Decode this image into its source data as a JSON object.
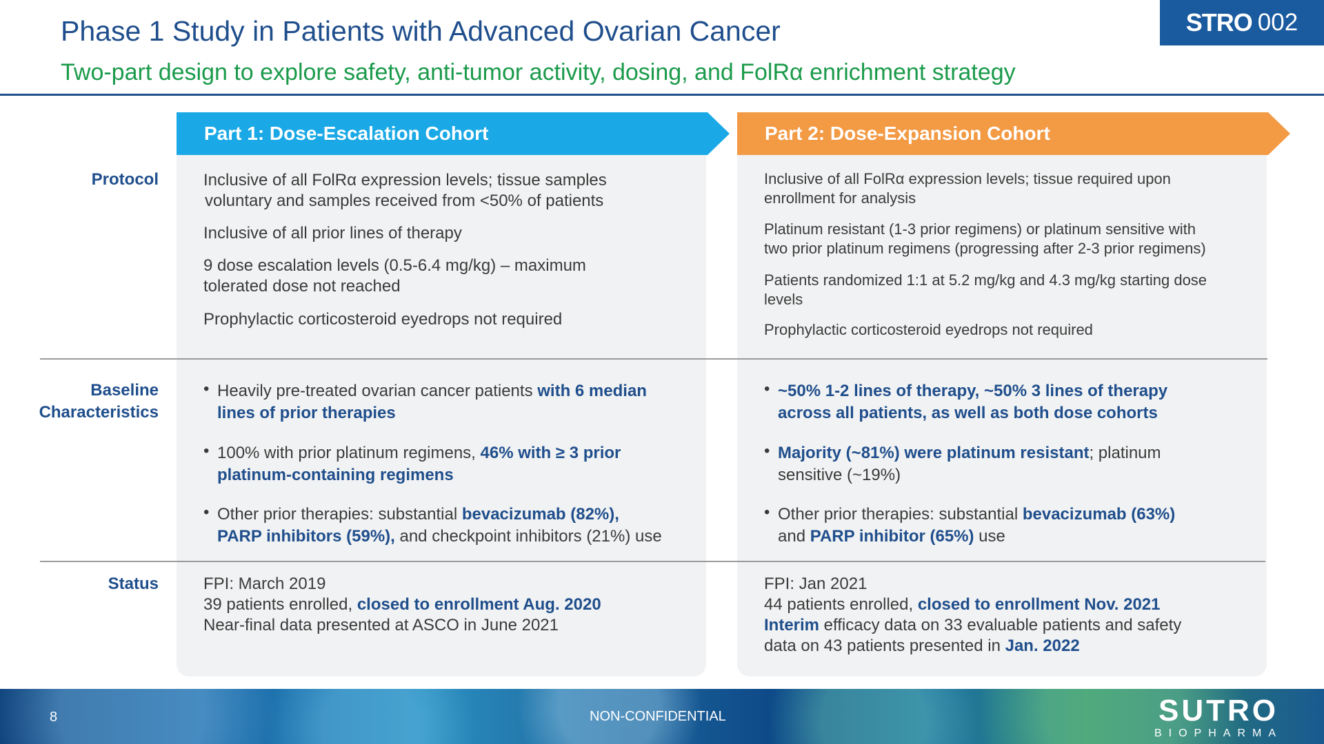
{
  "header": {
    "title": "Phase 1 Study in Patients with Advanced Ovarian Cancer",
    "subtitle": "Two-part design to explore safety, anti-tumor activity, dosing, and FolRα enrichment strategy",
    "badge_bold": "STRO",
    "badge_num": "002"
  },
  "rows": {
    "protocol": "Protocol",
    "baseline_1": "Baseline",
    "baseline_2": "Characteristics",
    "status": "Status"
  },
  "part1": {
    "banner": "Part 1: Dose-Escalation Cohort",
    "protocol": [
      "Inclusive of all FolRα expression levels; tissue samples",
      "voluntary and samples received from <50% of patients",
      "Inclusive of all prior lines of therapy",
      "9 dose escalation levels (0.5-6.4 mg/kg) – maximum",
      "tolerated dose not reached",
      "Prophylactic corticosteroid eyedrops not required"
    ],
    "baseline": {
      "b1_plain": "Heavily pre-treated ovarian cancer patients ",
      "b1_bold_a": "with 6 median",
      "b1_bold_b": "lines of prior therapies",
      "b2_plain": "100% with prior platinum regimens, ",
      "b2_bold_a": "46% with ≥ 3 prior",
      "b2_bold_b": "platinum-containing regimens",
      "b3_plain_a": "Other prior therapies: substantial ",
      "b3_bold_a": "bevacizumab (82%),",
      "b3_bold_b": "PARP inhibitors (59%),",
      "b3_plain_b": " and checkpoint inhibitors (21%) use"
    },
    "status": {
      "fpi": "FPI: March 2019",
      "enrolled_plain": "39 patients enrolled, ",
      "enrolled_bold": "closed to enrollment Aug. 2020",
      "data": "Near-final data presented at ASCO in June 2021"
    }
  },
  "part2": {
    "banner": "Part 2: Dose-Expansion Cohort",
    "protocol": [
      "Inclusive of all FolRα expression levels; tissue required upon",
      "enrollment for analysis",
      "Platinum resistant (1-3 prior regimens) or platinum sensitive with",
      "two prior platinum regimens (progressing after 2-3 prior regimens)",
      "Patients randomized 1:1 at 5.2 mg/kg and 4.3 mg/kg starting dose",
      "levels",
      "Prophylactic corticosteroid eyedrops not required"
    ],
    "baseline": {
      "b1_bold_a": "~50% 1-2 lines of therapy, ~50% 3 lines of therapy",
      "b1_bold_b": "across all patients, as well as both dose cohorts",
      "b2_bold": "Majority (~81%) were platinum resistant",
      "b2_plain_a": "; platinum",
      "b2_plain_b": "sensitive (~19%)",
      "b3_plain_a": "Other prior therapies: substantial ",
      "b3_bold_a": "bevacizumab (63%)",
      "b3_plain_b": "and ",
      "b3_bold_b": "PARP inhibitor (65%)",
      "b3_plain_c": " use"
    },
    "status": {
      "fpi": "FPI: Jan 2021",
      "enrolled_plain": "44 patients enrolled, ",
      "enrolled_bold": "closed to enrollment Nov. 2021",
      "interim_bold": "Interim",
      "interim_plain": " efficacy data on 33 evaluable patients and safety",
      "data_plain": "data on 43 patients presented in ",
      "data_bold": "Jan. 2022"
    }
  },
  "footer": {
    "page_number": "8",
    "classification": "NON-CONFIDENTIAL",
    "logo_main": "SUTRO",
    "logo_sub": "BIOPHARMA"
  },
  "colors": {
    "navy": "#1f4e8c",
    "green": "#1a9a4a",
    "part1_banner": "#1aa9e6",
    "part2_banner": "#f39a45"
  }
}
